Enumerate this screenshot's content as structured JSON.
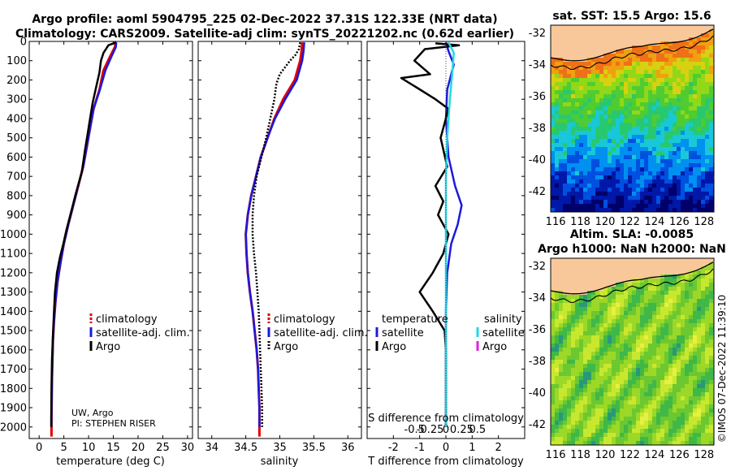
{
  "header": {
    "line1": "Argo profile: aoml 5904795_225 02-Dec-2022 37.31S 122.33E (NRT data)",
    "line2": "Climatology: CARS2009. Satellite-adj clim: synTS_20221202.nc (0.62d earlier)"
  },
  "credit": {
    "line1": "UW, Argo",
    "line2": "PI: STEPHEN RISER"
  },
  "stamp": "©IMOS 07-Dec-2022 11:39:10",
  "colors": {
    "climatology": "#e00000",
    "satellite": "#1a1adc",
    "argo": "#000000",
    "sal_satellite": "#22d8e8",
    "sal_argo": "#e020e0"
  },
  "chart_data": [
    {
      "type": "line",
      "id": "temperature",
      "xlabel": "temperature (deg C)",
      "xlim": [
        -2,
        31
      ],
      "ylim": [
        2060,
        0
      ],
      "xticks": [
        0,
        5,
        10,
        15,
        20,
        25,
        30
      ],
      "yticks": [
        0,
        100,
        200,
        300,
        400,
        500,
        600,
        700,
        800,
        900,
        1000,
        1100,
        1200,
        1300,
        1400,
        1500,
        1600,
        1700,
        1800,
        1900,
        2000
      ],
      "legend": [
        "climatology",
        "satellite-adj. clim.",
        "Argo"
      ],
      "series": [
        {
          "name": "climatology",
          "style": "red",
          "points": [
            [
              15.5,
              5
            ],
            [
              15.3,
              30
            ],
            [
              14.3,
              80
            ],
            [
              13.0,
              150
            ],
            [
              12.2,
              250
            ],
            [
              11.0,
              350
            ],
            [
              10.3,
              450
            ],
            [
              9.6,
              550
            ],
            [
              8.9,
              650
            ],
            [
              7.9,
              750
            ],
            [
              6.9,
              850
            ],
            [
              5.9,
              950
            ],
            [
              5.0,
              1050
            ],
            [
              4.3,
              1150
            ],
            [
              3.7,
              1250
            ],
            [
              3.3,
              1350
            ],
            [
              3.0,
              1450
            ],
            [
              2.8,
              1550
            ],
            [
              2.7,
              1650
            ],
            [
              2.6,
              1750
            ],
            [
              2.55,
              1850
            ],
            [
              2.5,
              1950
            ],
            [
              2.5,
              2050
            ]
          ]
        },
        {
          "name": "satellite-adj. clim.",
          "style": "blue",
          "points": [
            [
              15.6,
              5
            ],
            [
              15.5,
              30
            ],
            [
              14.6,
              80
            ],
            [
              13.4,
              150
            ],
            [
              12.3,
              250
            ],
            [
              11.0,
              350
            ],
            [
              10.3,
              450
            ],
            [
              9.6,
              550
            ],
            [
              8.9,
              650
            ],
            [
              7.9,
              750
            ],
            [
              6.9,
              850
            ],
            [
              5.9,
              950
            ],
            [
              5.0,
              1050
            ],
            [
              4.3,
              1150
            ],
            [
              3.7,
              1250
            ],
            [
              3.3,
              1350
            ],
            [
              3.0,
              1450
            ],
            [
              2.8,
              1550
            ],
            [
              2.7,
              1650
            ],
            [
              2.6,
              1750
            ],
            [
              2.55,
              1850
            ],
            [
              2.5,
              1950
            ],
            [
              2.5,
              2000
            ]
          ]
        },
        {
          "name": "Argo",
          "style": "black",
          "points": [
            [
              15.6,
              5
            ],
            [
              14.0,
              20
            ],
            [
              13.5,
              40
            ],
            [
              13.0,
              60
            ],
            [
              12.5,
              100
            ],
            [
              12.2,
              160
            ],
            [
              11.5,
              240
            ],
            [
              10.8,
              320
            ],
            [
              10.3,
              400
            ],
            [
              9.8,
              480
            ],
            [
              9.3,
              560
            ],
            [
              8.6,
              680
            ],
            [
              7.4,
              790
            ],
            [
              6.5,
              880
            ],
            [
              5.5,
              980
            ],
            [
              4.9,
              1050
            ],
            [
              4.2,
              1120
            ],
            [
              3.6,
              1200
            ],
            [
              3.2,
              1300
            ],
            [
              3.0,
              1400
            ],
            [
              2.8,
              1520
            ],
            [
              2.6,
              1650
            ],
            [
              2.5,
              1800
            ],
            [
              2.45,
              1950
            ],
            [
              2.45,
              2000
            ]
          ]
        }
      ]
    },
    {
      "type": "line",
      "id": "salinity",
      "xlabel": "salinity",
      "xlim": [
        33.8,
        36.2
      ],
      "ylim": [
        2060,
        0
      ],
      "xticks": [
        34,
        34.5,
        35,
        35.5,
        36
      ],
      "xtick_labels": [
        "34",
        "34.5",
        "35",
        "35.5",
        "36"
      ],
      "legend": [
        "climatology",
        "satellite-adj. clim.",
        "Argo"
      ],
      "series": [
        {
          "name": "climatology",
          "style": "red",
          "points": [
            [
              35.33,
              5
            ],
            [
              35.32,
              50
            ],
            [
              35.3,
              100
            ],
            [
              35.22,
              200
            ],
            [
              35.05,
              300
            ],
            [
              34.92,
              400
            ],
            [
              34.82,
              500
            ],
            [
              34.72,
              600
            ],
            [
              34.65,
              700
            ],
            [
              34.58,
              800
            ],
            [
              34.53,
              900
            ],
            [
              34.5,
              1000
            ],
            [
              34.51,
              1100
            ],
            [
              34.53,
              1200
            ],
            [
              34.56,
              1300
            ],
            [
              34.6,
              1400
            ],
            [
              34.63,
              1500
            ],
            [
              34.66,
              1600
            ],
            [
              34.68,
              1700
            ],
            [
              34.69,
              1800
            ],
            [
              34.7,
              1900
            ],
            [
              34.7,
              2050
            ]
          ]
        },
        {
          "name": "satellite-adj. clim.",
          "style": "blue",
          "points": [
            [
              35.36,
              5
            ],
            [
              35.35,
              50
            ],
            [
              35.33,
              100
            ],
            [
              35.25,
              200
            ],
            [
              35.08,
              300
            ],
            [
              34.93,
              400
            ],
            [
              34.82,
              500
            ],
            [
              34.72,
              600
            ],
            [
              34.65,
              700
            ],
            [
              34.58,
              800
            ],
            [
              34.53,
              900
            ],
            [
              34.5,
              1000
            ],
            [
              34.51,
              1100
            ],
            [
              34.53,
              1200
            ],
            [
              34.56,
              1300
            ],
            [
              34.6,
              1400
            ],
            [
              34.63,
              1500
            ],
            [
              34.66,
              1600
            ],
            [
              34.68,
              1700
            ],
            [
              34.69,
              1800
            ],
            [
              34.7,
              1900
            ],
            [
              34.7,
              2000
            ]
          ]
        },
        {
          "name": "Argo",
          "style": "black-dotted",
          "points": [
            [
              35.3,
              5
            ],
            [
              35.28,
              40
            ],
            [
              35.23,
              70
            ],
            [
              35.15,
              100
            ],
            [
              35.0,
              170
            ],
            [
              34.95,
              220
            ],
            [
              34.92,
              300
            ],
            [
              34.86,
              400
            ],
            [
              34.8,
              500
            ],
            [
              34.73,
              600
            ],
            [
              34.66,
              700
            ],
            [
              34.62,
              800
            ],
            [
              34.6,
              900
            ],
            [
              34.6,
              1000
            ],
            [
              34.62,
              1100
            ],
            [
              34.65,
              1200
            ],
            [
              34.67,
              1300
            ],
            [
              34.69,
              1400
            ],
            [
              34.7,
              1500
            ],
            [
              34.71,
              1600
            ],
            [
              34.72,
              1700
            ],
            [
              34.73,
              1800
            ],
            [
              34.74,
              1900
            ],
            [
              34.74,
              2000
            ]
          ]
        }
      ]
    },
    {
      "type": "line",
      "id": "difference",
      "xlabel": "T difference from climatology",
      "top_label": "S difference from climatology",
      "xlim": [
        -3,
        3
      ],
      "ylim": [
        2060,
        0
      ],
      "xticks": [
        -2,
        -1,
        0,
        1,
        2
      ],
      "xtick_labels": [
        "-2",
        "-1",
        "0",
        "1",
        "2"
      ],
      "s_ticks": [
        -0.5,
        -0.25,
        0,
        0.25,
        0.5
      ],
      "s_tick_labels": [
        "-0.5",
        "-0.25",
        "0",
        "0.25",
        "0.5"
      ],
      "legend_heads": [
        "temperature",
        "salinity"
      ],
      "legend_left": [
        "satellite",
        "Argo"
      ],
      "legend_right": [
        "satellite",
        "Argo"
      ],
      "series": [
        {
          "name": "temperature satellite",
          "style": "blue",
          "points": [
            [
              0,
              5
            ],
            [
              0.1,
              50
            ],
            [
              0.3,
              120
            ],
            [
              0.05,
              250
            ],
            [
              0,
              400
            ],
            [
              0.1,
              600
            ],
            [
              0.35,
              750
            ],
            [
              0.6,
              850
            ],
            [
              0.45,
              950
            ],
            [
              0.2,
              1050
            ],
            [
              0.05,
              1200
            ],
            [
              0,
              1400
            ],
            [
              0,
              2000
            ]
          ]
        },
        {
          "name": "temperature Argo",
          "style": "black",
          "points": [
            [
              -0.4,
              10
            ],
            [
              0.5,
              20
            ],
            [
              -0.8,
              40
            ],
            [
              -1.2,
              100
            ],
            [
              -0.6,
              170
            ],
            [
              -1.7,
              190
            ],
            [
              -1.1,
              240
            ],
            [
              -0.4,
              300
            ],
            [
              0.1,
              350
            ],
            [
              -0.2,
              500
            ],
            [
              0.05,
              650
            ],
            [
              -0.4,
              750
            ],
            [
              -0.1,
              830
            ],
            [
              -0.3,
              900
            ],
            [
              0.1,
              1000
            ],
            [
              -0.1,
              1100
            ],
            [
              -0.5,
              1200
            ],
            [
              -1.0,
              1300
            ],
            [
              -0.5,
              1400
            ],
            [
              -0.05,
              1500
            ],
            [
              0,
              1600
            ],
            [
              0,
              2000
            ]
          ]
        },
        {
          "name": "salinity satellite",
          "style": "cyan",
          "points": [
            [
              0.1,
              5
            ],
            [
              0.3,
              60
            ],
            [
              0.25,
              150
            ],
            [
              0.15,
              300
            ],
            [
              0.05,
              500
            ],
            [
              0,
              700
            ],
            [
              0,
              2000
            ]
          ]
        },
        {
          "name": "salinity Argo",
          "style": "dotted",
          "points": [
            [
              0,
              0
            ],
            [
              0,
              2000
            ]
          ]
        }
      ]
    },
    {
      "type": "heatmap",
      "id": "sst-map",
      "title": "sat. SST: 15.5 Argo: 15.6",
      "xticks": [
        116,
        118,
        120,
        122,
        124,
        126,
        128
      ],
      "yticks": [
        -32,
        -34,
        -36,
        -38,
        -40,
        -42
      ],
      "xlim": [
        115.6,
        128.8
      ],
      "ylim": [
        -43.3,
        -31.5
      ],
      "marker": [
        122.33,
        -37.31
      ]
    },
    {
      "type": "heatmap",
      "id": "sla-map",
      "title": "Altim. SLA: -0.0085",
      "subtitle": "Argo h1000: NaN h2000: NaN",
      "xticks": [
        116,
        118,
        120,
        122,
        124,
        126,
        128
      ],
      "yticks": [
        -32,
        -34,
        -36,
        -38,
        -40,
        -42
      ],
      "xlim": [
        115.6,
        128.8
      ],
      "ylim": [
        -43.3,
        -31.5
      ],
      "marker": [
        122.33,
        -37.31
      ]
    }
  ]
}
